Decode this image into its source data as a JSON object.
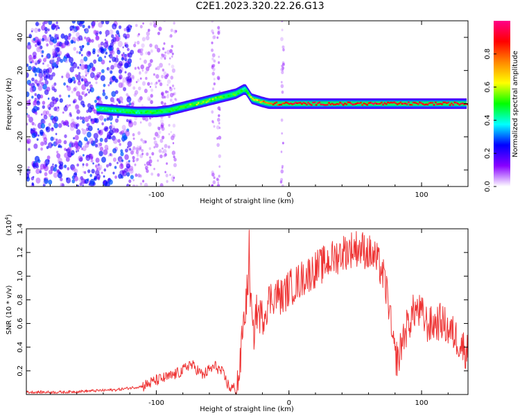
{
  "figure_title": "C2E1.2023.320.22.26.G13",
  "chart_data": [
    {
      "type": "heatmap",
      "xlabel": "Height of straight line (km)",
      "ylabel": "Frequency (Hz)",
      "xlim": [
        -198,
        135
      ],
      "ylim": [
        -50,
        50
      ],
      "xticks": [
        -100,
        0,
        100
      ],
      "xtick_labels": [
        "-100",
        "0",
        "100"
      ],
      "yticks": [
        -40,
        -20,
        0,
        20,
        40
      ],
      "ytick_labels": [
        "-40",
        "-20",
        "0",
        "20",
        "40"
      ],
      "colorbar": {
        "label": "Normalized spectral amplitude",
        "range": [
          0.0,
          1.0
        ],
        "ticks": [
          0.0,
          0.2,
          0.4,
          0.6,
          0.8
        ],
        "tick_labels": [
          "0.0",
          "0.2",
          "0.4",
          "0.6",
          "0.8"
        ],
        "colors": [
          "#ffffff",
          "#8800ff",
          "#0000ff",
          "#00ffff",
          "#00ff00",
          "#ffff00",
          "#ff8800",
          "#ff0000",
          "#ff0088"
        ]
      },
      "signal_track": {
        "x": [
          -145,
          -130,
          -115,
          -100,
          -90,
          -80,
          -70,
          -60,
          -50,
          -40,
          -33,
          -28,
          -20,
          -15,
          -5,
          0,
          135
        ],
        "frequency": [
          -3,
          -4,
          -5,
          -5,
          -4,
          -2,
          0,
          2,
          4,
          6,
          9,
          3,
          1,
          0,
          0,
          0,
          0
        ],
        "peak_amplitude": [
          0.4,
          0.45,
          0.45,
          0.5,
          0.5,
          0.5,
          0.55,
          0.55,
          0.5,
          0.5,
          0.45,
          0.6,
          0.75,
          0.8,
          0.85,
          0.9,
          0.9
        ]
      },
      "noise": {
        "dense_region_x": [
          -198,
          -118
        ],
        "sparse_region_x": [
          -118,
          -85
        ],
        "streak_x": [
          -57,
          -53,
          -5
        ]
      }
    },
    {
      "type": "line",
      "xlabel": "Height of straight line (km)",
      "ylabel": "SNR (10 * v/v)",
      "y_multiplier": "(x10",
      "y_multiplier_exp": "4",
      "y_multiplier_close": ")",
      "xlim": [
        -198,
        135
      ],
      "ylim": [
        0,
        1.4
      ],
      "xticks": [
        -100,
        0,
        100
      ],
      "xtick_labels": [
        "-100",
        "0",
        "100"
      ],
      "yticks": [
        0.2,
        0.4,
        0.6,
        0.8,
        1.0,
        1.2,
        1.4
      ],
      "ytick_labels": [
        "0.2",
        "0.4",
        "0.6",
        "0.8",
        "1.0",
        "1.2",
        "1.4"
      ],
      "color": "#ee3333",
      "series": [
        {
          "x": [
            -198,
            -170,
            -150,
            -130,
            -110,
            -100,
            -90,
            -80,
            -75,
            -70,
            -65,
            -60,
            -55,
            -50,
            -45,
            -40,
            -37,
            -35,
            -33,
            -30,
            -27,
            -25,
            -20,
            -15,
            -10,
            -5,
            0,
            5,
            10,
            15,
            20,
            25,
            30,
            35,
            40,
            45,
            50,
            55,
            60,
            65,
            70,
            75,
            78,
            80,
            83,
            85,
            90,
            95,
            100,
            105,
            110,
            115,
            120,
            125,
            130,
            135
          ],
          "y": [
            0.02,
            0.02,
            0.03,
            0.04,
            0.07,
            0.12,
            0.15,
            0.2,
            0.26,
            0.22,
            0.16,
            0.21,
            0.24,
            0.18,
            0.06,
            0.05,
            0.2,
            0.55,
            0.7,
            1.05,
            0.45,
            0.7,
            0.65,
            0.8,
            0.85,
            0.82,
            0.9,
            0.93,
            0.98,
            1.02,
            1.06,
            1.09,
            1.13,
            1.16,
            1.2,
            1.22,
            1.24,
            1.23,
            1.2,
            1.15,
            1.05,
            0.8,
            0.45,
            0.32,
            0.3,
            0.45,
            0.6,
            0.72,
            0.68,
            0.58,
            0.6,
            0.62,
            0.55,
            0.5,
            0.42,
            0.35
          ]
        }
      ]
    }
  ]
}
